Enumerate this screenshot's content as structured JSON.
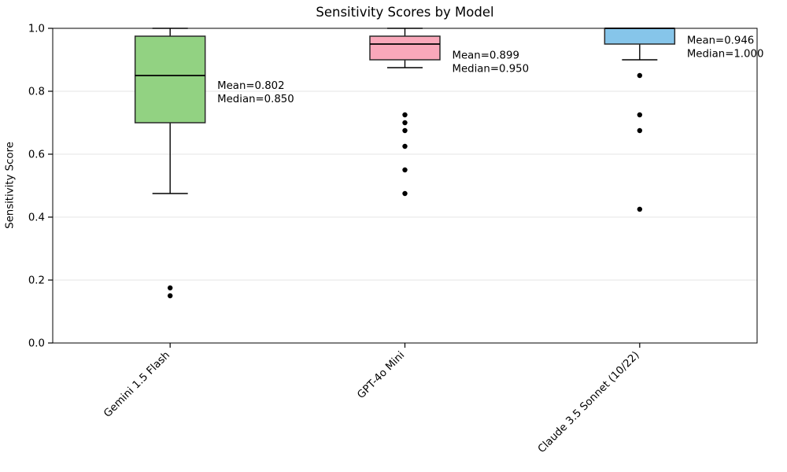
{
  "chart_data": {
    "type": "boxplot",
    "title": "Sensitivity Scores by Model",
    "ylabel": "Sensitivity Score",
    "xlabel": "",
    "ylim": [
      0.0,
      1.0
    ],
    "ytick_values": [
      0.0,
      0.2,
      0.4,
      0.6,
      0.8,
      1.0
    ],
    "ytick_labels": [
      "0.0",
      "0.2",
      "0.4",
      "0.6",
      "0.8",
      "1.0"
    ],
    "grid": "horizontal major gridlines, light gray",
    "legend": "none",
    "categories": [
      "Gemini 1.5 Flash",
      "GPT-4o Mini",
      "Claude 3.5 Sonnet (10/22)"
    ],
    "boxes": [
      {
        "category": "Gemini 1.5 Flash",
        "fill_color": "#92D282",
        "q1": 0.7,
        "median": 0.85,
        "q3": 0.975,
        "whisker_low": 0.475,
        "whisker_high": 1.0,
        "outliers": [
          0.175,
          0.15
        ],
        "mean": 0.802,
        "annotation_lines": [
          "Mean=0.802",
          "Median=0.850"
        ]
      },
      {
        "category": "GPT-4o Mini",
        "fill_color": "#F9A8BA",
        "q1": 0.9,
        "median": 0.95,
        "q3": 0.975,
        "whisker_low": 0.875,
        "whisker_high": 1.0,
        "outliers": [
          0.725,
          0.7,
          0.675,
          0.625,
          0.55,
          0.475
        ],
        "mean": 0.899,
        "annotation_lines": [
          "Mean=0.899",
          "Median=0.950"
        ]
      },
      {
        "category": "Claude 3.5 Sonnet (10/22)",
        "fill_color": "#86C5EA",
        "q1": 0.95,
        "median": 1.0,
        "q3": 1.0,
        "whisker_low": 0.9,
        "whisker_high": 1.0,
        "outliers": [
          0.85,
          0.725,
          0.675,
          0.425
        ],
        "mean": 0.946,
        "annotation_lines": [
          "Mean=0.946",
          "Median=1.000"
        ]
      }
    ],
    "colors": {
      "background": "#FFFFFF",
      "box_edge": "#2A2A2A",
      "median_line": "#000000",
      "whisker": "#000000",
      "outlier": "#000000",
      "grid": "#E4E4E4",
      "spine": "#000000",
      "text": "#000000"
    }
  }
}
